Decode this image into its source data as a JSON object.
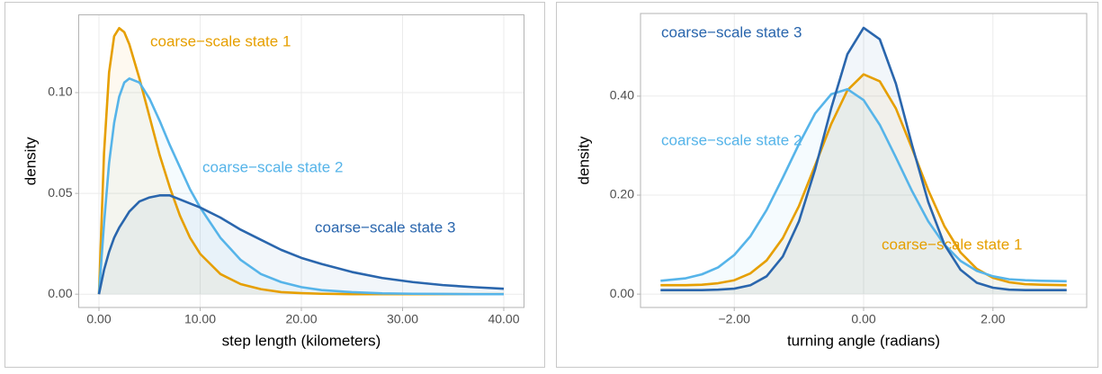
{
  "chart_data": [
    {
      "type": "line",
      "x_label": "step length (kilometers)",
      "y_label": "density",
      "x": [
        0,
        0.5,
        1,
        1.5,
        2,
        2.5,
        3,
        4,
        5,
        6,
        7,
        8,
        9,
        10,
        12,
        14,
        16,
        18,
        20,
        22,
        25,
        28,
        31,
        34,
        37,
        40
      ],
      "series": [
        {
          "name": "coarse−scale state 1",
          "color": "#E69F00",
          "values": [
            0,
            0.07,
            0.11,
            0.128,
            0.132,
            0.13,
            0.124,
            0.107,
            0.088,
            0.069,
            0.053,
            0.039,
            0.028,
            0.02,
            0.01,
            0.005,
            0.0025,
            0.001,
            0.0005,
            0.0002,
            0,
            0,
            0,
            0,
            0,
            0
          ]
        },
        {
          "name": "coarse−scale state 2",
          "color": "#56B4E9",
          "values": [
            0,
            0.035,
            0.065,
            0.085,
            0.098,
            0.105,
            0.107,
            0.105,
            0.097,
            0.086,
            0.074,
            0.063,
            0.052,
            0.043,
            0.028,
            0.017,
            0.01,
            0.006,
            0.0035,
            0.002,
            0.001,
            0.0004,
            0.0002,
            0.0001,
            0,
            0
          ]
        },
        {
          "name": "coarse−scale state 3",
          "color": "#2A66AD",
          "values": [
            0,
            0.012,
            0.021,
            0.028,
            0.033,
            0.037,
            0.041,
            0.046,
            0.048,
            0.049,
            0.049,
            0.047,
            0.045,
            0.043,
            0.038,
            0.032,
            0.027,
            0.022,
            0.018,
            0.015,
            0.011,
            0.008,
            0.006,
            0.0045,
            0.0035,
            0.0027
          ]
        }
      ],
      "xlim": [
        -2,
        42
      ],
      "ylim": [
        -0.0066,
        0.1386
      ],
      "xticks": [
        {
          "value": 0,
          "label": "0.00"
        },
        {
          "value": 10,
          "label": "10.00"
        },
        {
          "value": 20,
          "label": "20.00"
        },
        {
          "value": 30,
          "label": "30.00"
        },
        {
          "value": 40,
          "label": "40.00"
        }
      ],
      "yticks": [
        {
          "value": 0,
          "label": "0.00"
        },
        {
          "value": 0.05,
          "label": "0.05"
        },
        {
          "value": 0.1,
          "label": "0.10"
        }
      ],
      "grid": true
    },
    {
      "type": "line",
      "x_label": "turning angle (radians)",
      "y_label": "density",
      "x": [
        -3.14,
        -2.75,
        -2.5,
        -2.25,
        -2,
        -1.75,
        -1.5,
        -1.25,
        -1,
        -0.75,
        -0.5,
        -0.25,
        0,
        0.25,
        0.5,
        0.75,
        1,
        1.25,
        1.5,
        1.75,
        2,
        2.25,
        2.5,
        2.75,
        3.14
      ],
      "series": [
        {
          "name": "coarse−scale state 1",
          "color": "#E69F00",
          "values": [
            0.018,
            0.018,
            0.019,
            0.022,
            0.028,
            0.042,
            0.068,
            0.113,
            0.178,
            0.26,
            0.344,
            0.412,
            0.444,
            0.43,
            0.375,
            0.294,
            0.21,
            0.137,
            0.084,
            0.051,
            0.033,
            0.024,
            0.02,
            0.019,
            0.018
          ]
        },
        {
          "name": "coarse−scale state 2",
          "color": "#56B4E9",
          "values": [
            0.027,
            0.032,
            0.04,
            0.054,
            0.079,
            0.117,
            0.17,
            0.235,
            0.303,
            0.365,
            0.404,
            0.414,
            0.392,
            0.342,
            0.276,
            0.208,
            0.147,
            0.1,
            0.067,
            0.047,
            0.036,
            0.03,
            0.028,
            0.027,
            0.026
          ]
        },
        {
          "name": "coarse−scale state 3",
          "color": "#2A66AD",
          "values": [
            0.008,
            0.008,
            0.008,
            0.009,
            0.011,
            0.018,
            0.036,
            0.076,
            0.147,
            0.252,
            0.376,
            0.485,
            0.538,
            0.515,
            0.425,
            0.301,
            0.186,
            0.1,
            0.049,
            0.023,
            0.013,
            0.009,
            0.008,
            0.008,
            0.008
          ]
        }
      ],
      "xlim": [
        -3.45,
        3.45
      ],
      "ylim": [
        -0.027,
        0.567
      ],
      "xticks": [
        {
          "value": -2,
          "label": "−2.00"
        },
        {
          "value": 0,
          "label": "0.00"
        },
        {
          "value": 2,
          "label": "2.00"
        }
      ],
      "yticks": [
        {
          "value": 0,
          "label": "0.00"
        },
        {
          "value": 0.2,
          "label": "0.20"
        },
        {
          "value": 0.4,
          "label": "0.40"
        }
      ],
      "grid": true
    }
  ]
}
